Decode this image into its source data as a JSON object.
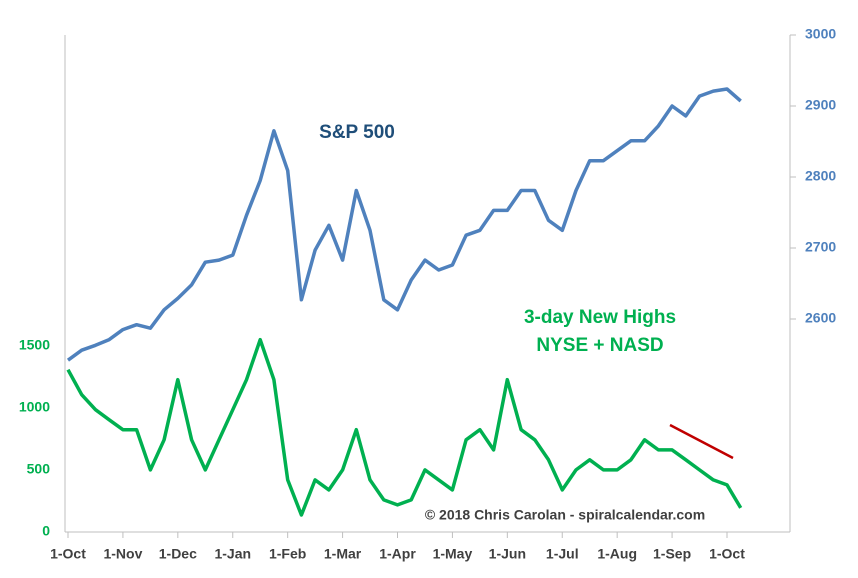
{
  "chart_data": {
    "type": "line",
    "categories": [
      "1-Oct",
      null,
      null,
      null,
      "1-Nov",
      null,
      null,
      null,
      "1-Dec",
      null,
      null,
      null,
      "1-Jan",
      null,
      null,
      null,
      "1-Feb",
      null,
      null,
      null,
      "1-Mar",
      null,
      null,
      null,
      "1-Apr",
      null,
      null,
      null,
      "1-May",
      null,
      null,
      null,
      "1-Jun",
      null,
      null,
      null,
      "1-Jul",
      null,
      null,
      null,
      "1-Aug",
      null,
      null,
      null,
      "1-Sep",
      null,
      null,
      null,
      "1-Oct",
      null
    ],
    "series": [
      {
        "name": "S&P 500",
        "color": "#4f81bd",
        "axis": "y2",
        "values": [
          2542,
          2556,
          2563,
          2571,
          2585,
          2592,
          2587,
          2613,
          2629,
          2648,
          2680,
          2683,
          2690,
          2746,
          2795,
          2865,
          2809,
          2627,
          2697,
          2732,
          2683,
          2781,
          2725,
          2627,
          2613,
          2655,
          2683,
          2669,
          2676,
          2718,
          2725,
          2753,
          2753,
          2781,
          2781,
          2739,
          2725,
          2781,
          2823,
          2823,
          2837,
          2851,
          2851,
          2872,
          2900,
          2886,
          2914,
          2921,
          2924,
          2907
        ]
      },
      {
        "name": "3-day New Highs",
        "color": "#00b050",
        "values": [
          1306,
          1105,
          984,
          903,
          823,
          823,
          500,
          742,
          1226,
          742,
          500,
          742,
          984,
          1226,
          1548,
          1226,
          419,
          137,
          419,
          339,
          500,
          823,
          419,
          258,
          218,
          258,
          500,
          419,
          339,
          742,
          823,
          661,
          1226,
          823,
          742,
          581,
          339,
          500,
          581,
          500,
          500,
          581,
          742,
          661,
          661,
          581,
          500,
          419,
          379,
          194
        ]
      }
    ],
    "ylim": [
      0,
      4000
    ],
    "yticks": [
      0,
      500,
      1000,
      1500
    ],
    "y2lim": [
      2300,
      3000
    ],
    "y2ticks": [
      2600,
      2700,
      2800,
      2900,
      3000
    ],
    "grid": false,
    "annotations": [
      "NYSE + NASD",
      "© 2018 Chris Carolan - spiralcalendar.com"
    ]
  }
}
